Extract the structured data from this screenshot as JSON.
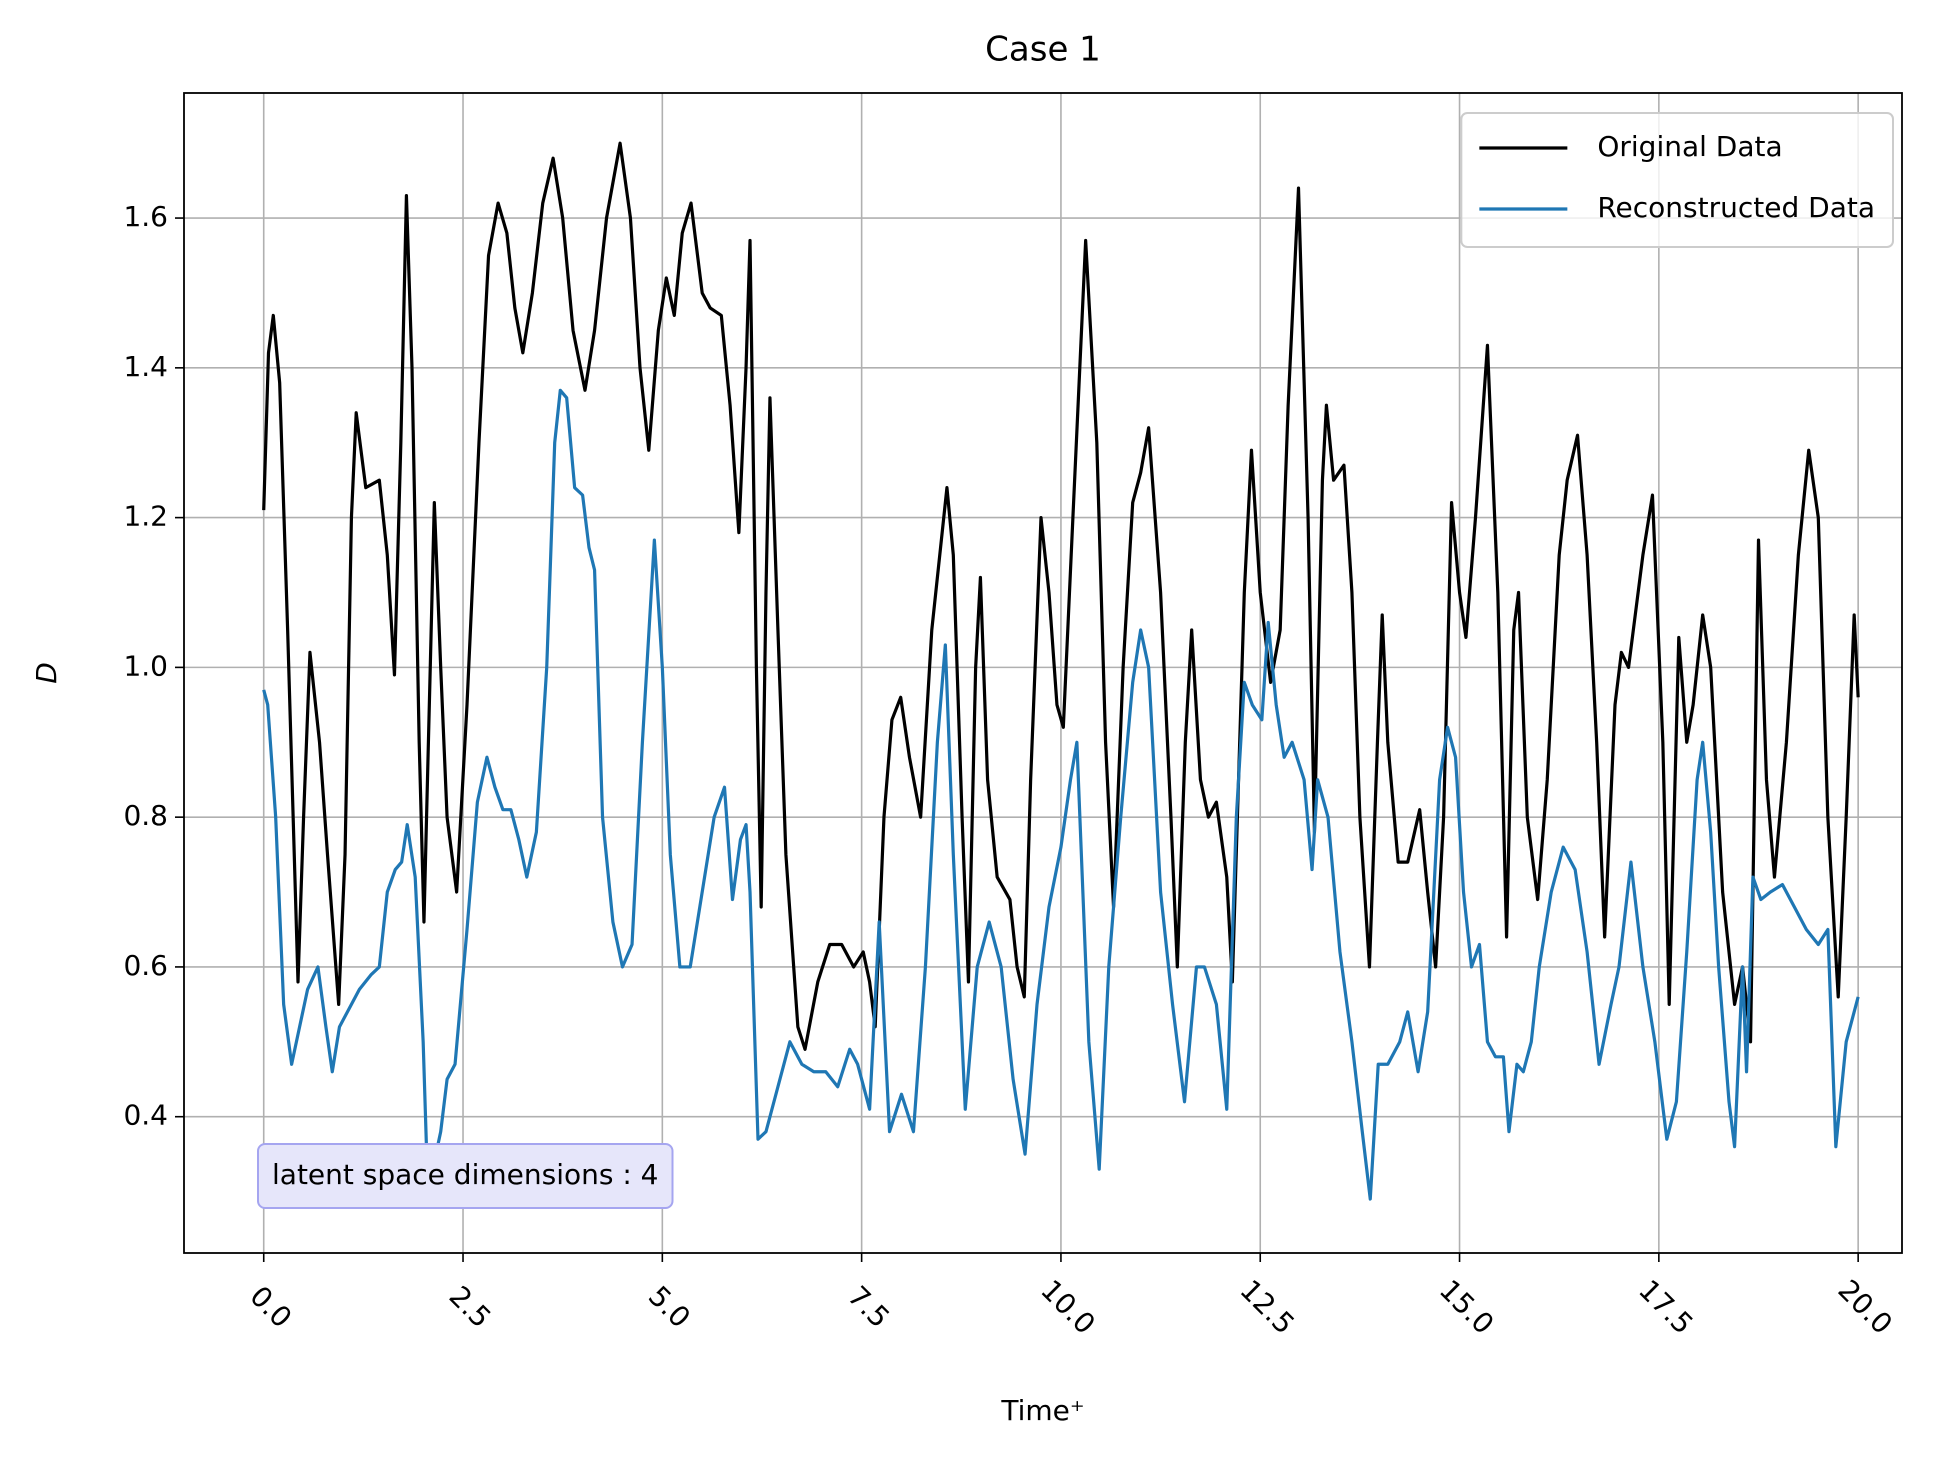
{
  "chart_data": {
    "type": "line",
    "title": "Case 1",
    "x_label": "Time⁺",
    "y_label": "D",
    "annotation": "latent space dimensions : 4",
    "xlim": [
      -1,
      20.55
    ],
    "ylim": [
      0.218,
      1.767
    ],
    "xticks": [
      {
        "value": 0,
        "label": "0.0"
      },
      {
        "value": 2.5,
        "label": "2.5"
      },
      {
        "value": 5,
        "label": "5.0"
      },
      {
        "value": 7.5,
        "label": "7.5"
      },
      {
        "value": 10,
        "label": "10.0"
      },
      {
        "value": 12.5,
        "label": "12.5"
      },
      {
        "value": 15,
        "label": "15.0"
      },
      {
        "value": 17.5,
        "label": "17.5"
      },
      {
        "value": 20,
        "label": "20.0"
      }
    ],
    "yticks": [
      0.4,
      0.6,
      0.8,
      {
        "value": 1,
        "label": "1.0"
      },
      1.2,
      1.4,
      1.6
    ],
    "grid": true,
    "legend": "upper right",
    "series": [
      {
        "name": "Original Data",
        "color": "#000000",
        "x": [
          0,
          0.06,
          0.12,
          0.2,
          0.3,
          0.43,
          0.5,
          0.58,
          0.7,
          0.8,
          0.94,
          1.02,
          1.1,
          1.16,
          1.28,
          1.45,
          1.55,
          1.64,
          1.72,
          1.79,
          1.86,
          1.95,
          2.01,
          2.14,
          2.22,
          2.3,
          2.42,
          2.55,
          2.7,
          2.82,
          2.94,
          3.05,
          3.15,
          3.25,
          3.37,
          3.5,
          3.63,
          3.75,
          3.88,
          4.03,
          4.15,
          4.3,
          4.47,
          4.6,
          4.72,
          4.83,
          4.95,
          5.05,
          5.15,
          5.25,
          5.36,
          5.5,
          5.6,
          5.74,
          5.85,
          5.96,
          6.05,
          6.1,
          6.18,
          6.24,
          6.3,
          6.35,
          6.45,
          6.55,
          6.7,
          6.79,
          6.95,
          7.1,
          7.25,
          7.4,
          7.52,
          7.6,
          7.67,
          7.78,
          7.88,
          7.99,
          8.1,
          8.24,
          8.38,
          8.57,
          8.65,
          8.76,
          8.84,
          8.93,
          8.99,
          9.08,
          9.2,
          9.36,
          9.45,
          9.54,
          9.62,
          9.75,
          9.85,
          9.95,
          10.03,
          10.15,
          10.31,
          10.45,
          10.56,
          10.66,
          10.78,
          10.9,
          11.0,
          11.1,
          11.25,
          11.38,
          11.46,
          11.56,
          11.64,
          11.75,
          11.85,
          11.95,
          12.08,
          12.15,
          12.3,
          12.39,
          12.5,
          12.63,
          12.75,
          12.85,
          12.98,
          13.1,
          13.18,
          13.28,
          13.33,
          13.42,
          13.55,
          13.65,
          13.75,
          13.87,
          13.97,
          14.03,
          14.1,
          14.23,
          14.35,
          14.5,
          14.6,
          14.7,
          14.8,
          14.9,
          15.0,
          15.08,
          15.2,
          15.35,
          15.48,
          15.59,
          15.68,
          15.74,
          15.85,
          15.98,
          16.1,
          16.25,
          16.35,
          16.48,
          16.6,
          16.72,
          16.82,
          16.95,
          17.03,
          17.12,
          17.3,
          17.42,
          17.55,
          17.63,
          17.75,
          17.85,
          17.93,
          18.05,
          18.15,
          18.3,
          18.45,
          18.55,
          18.65,
          18.75,
          18.85,
          18.95,
          19.1,
          19.25,
          19.38,
          19.5,
          19.62,
          19.75,
          19.85,
          19.95,
          20.0
        ],
        "values": [
          1.21,
          1.42,
          1.47,
          1.38,
          1.05,
          0.58,
          0.8,
          1.02,
          0.9,
          0.75,
          0.55,
          0.75,
          1.2,
          1.34,
          1.24,
          1.25,
          1.15,
          0.99,
          1.3,
          1.63,
          1.4,
          0.9,
          0.66,
          1.22,
          1.0,
          0.8,
          0.7,
          0.95,
          1.3,
          1.55,
          1.62,
          1.58,
          1.48,
          1.42,
          1.5,
          1.62,
          1.68,
          1.6,
          1.45,
          1.37,
          1.45,
          1.6,
          1.7,
          1.6,
          1.4,
          1.29,
          1.45,
          1.52,
          1.47,
          1.58,
          1.62,
          1.5,
          1.48,
          1.47,
          1.35,
          1.18,
          1.4,
          1.57,
          1.0,
          0.68,
          1.1,
          1.36,
          1.05,
          0.75,
          0.52,
          0.49,
          0.58,
          0.63,
          0.63,
          0.6,
          0.62,
          0.58,
          0.52,
          0.8,
          0.93,
          0.96,
          0.88,
          0.8,
          1.05,
          1.24,
          1.15,
          0.8,
          0.58,
          1.0,
          1.12,
          0.85,
          0.72,
          0.69,
          0.6,
          0.56,
          0.85,
          1.2,
          1.1,
          0.95,
          0.92,
          1.2,
          1.57,
          1.3,
          0.9,
          0.68,
          1.0,
          1.22,
          1.26,
          1.32,
          1.1,
          0.8,
          0.6,
          0.9,
          1.05,
          0.85,
          0.8,
          0.82,
          0.72,
          0.58,
          1.1,
          1.29,
          1.1,
          0.98,
          1.05,
          1.35,
          1.64,
          1.2,
          0.78,
          1.25,
          1.35,
          1.25,
          1.27,
          1.1,
          0.8,
          0.6,
          0.9,
          1.07,
          0.9,
          0.74,
          0.74,
          0.81,
          0.7,
          0.6,
          0.8,
          1.22,
          1.1,
          1.04,
          1.2,
          1.43,
          1.1,
          0.64,
          1.05,
          1.1,
          0.8,
          0.69,
          0.85,
          1.15,
          1.25,
          1.31,
          1.15,
          0.9,
          0.64,
          0.95,
          1.02,
          1.0,
          1.15,
          1.23,
          0.9,
          0.55,
          1.04,
          0.9,
          0.95,
          1.07,
          1.0,
          0.7,
          0.55,
          0.6,
          0.5,
          1.17,
          0.85,
          0.72,
          0.9,
          1.15,
          1.29,
          1.2,
          0.8,
          0.56,
          0.8,
          1.07,
          0.96
        ]
      },
      {
        "name": "Reconstructed Data",
        "color": "#1f77b4",
        "x": [
          0,
          0.05,
          0.15,
          0.25,
          0.35,
          0.45,
          0.55,
          0.68,
          0.78,
          0.86,
          0.95,
          1.05,
          1.2,
          1.35,
          1.45,
          1.55,
          1.65,
          1.73,
          1.8,
          1.9,
          2.0,
          2.05,
          2.12,
          2.22,
          2.3,
          2.4,
          2.55,
          2.68,
          2.8,
          2.9,
          3.0,
          3.1,
          3.2,
          3.3,
          3.42,
          3.55,
          3.65,
          3.72,
          3.8,
          3.9,
          4.0,
          4.08,
          4.15,
          4.25,
          4.38,
          4.5,
          4.62,
          4.75,
          4.9,
          5.0,
          5.1,
          5.22,
          5.35,
          5.5,
          5.65,
          5.78,
          5.88,
          5.98,
          6.05,
          6.1,
          6.2,
          6.3,
          6.45,
          6.6,
          6.75,
          6.9,
          7.05,
          7.2,
          7.35,
          7.45,
          7.6,
          7.72,
          7.85,
          8.0,
          8.15,
          8.3,
          8.45,
          8.55,
          8.65,
          8.8,
          8.95,
          9.1,
          9.25,
          9.4,
          9.55,
          9.7,
          9.85,
          10.0,
          10.12,
          10.2,
          10.35,
          10.48,
          10.6,
          10.75,
          10.9,
          11.0,
          11.1,
          11.25,
          11.4,
          11.55,
          11.7,
          11.8,
          11.95,
          12.08,
          12.2,
          12.3,
          12.4,
          12.52,
          12.6,
          12.7,
          12.8,
          12.9,
          13.05,
          13.15,
          13.22,
          13.35,
          13.5,
          13.65,
          13.78,
          13.88,
          13.98,
          14.1,
          14.25,
          14.35,
          14.48,
          14.6,
          14.75,
          14.85,
          14.95,
          15.05,
          15.15,
          15.25,
          15.35,
          15.45,
          15.55,
          15.62,
          15.72,
          15.8,
          15.9,
          16.0,
          16.15,
          16.3,
          16.45,
          16.6,
          16.75,
          16.9,
          17.0,
          17.15,
          17.3,
          17.45,
          17.6,
          17.72,
          17.85,
          17.98,
          18.05,
          18.15,
          18.25,
          18.38,
          18.45,
          18.55,
          18.6,
          18.68,
          18.78,
          18.9,
          19.05,
          19.2,
          19.35,
          19.5,
          19.62,
          19.72,
          19.85,
          20.0
        ],
        "values": [
          0.97,
          0.95,
          0.8,
          0.55,
          0.47,
          0.52,
          0.57,
          0.6,
          0.52,
          0.46,
          0.52,
          0.54,
          0.57,
          0.59,
          0.6,
          0.7,
          0.73,
          0.74,
          0.79,
          0.72,
          0.5,
          0.33,
          0.33,
          0.38,
          0.45,
          0.47,
          0.65,
          0.82,
          0.88,
          0.84,
          0.81,
          0.81,
          0.77,
          0.72,
          0.78,
          1.0,
          1.3,
          1.37,
          1.36,
          1.24,
          1.23,
          1.16,
          1.13,
          0.8,
          0.66,
          0.6,
          0.63,
          0.9,
          1.17,
          1.0,
          0.75,
          0.6,
          0.6,
          0.7,
          0.8,
          0.84,
          0.69,
          0.77,
          0.79,
          0.7,
          0.37,
          0.38,
          0.44,
          0.5,
          0.47,
          0.46,
          0.46,
          0.44,
          0.49,
          0.47,
          0.41,
          0.66,
          0.38,
          0.43,
          0.38,
          0.6,
          0.9,
          1.03,
          0.75,
          0.41,
          0.6,
          0.66,
          0.6,
          0.45,
          0.35,
          0.55,
          0.68,
          0.76,
          0.85,
          0.9,
          0.5,
          0.33,
          0.6,
          0.8,
          0.98,
          1.05,
          1.0,
          0.7,
          0.55,
          0.42,
          0.6,
          0.6,
          0.55,
          0.41,
          0.8,
          0.98,
          0.95,
          0.93,
          1.06,
          0.95,
          0.88,
          0.9,
          0.85,
          0.73,
          0.85,
          0.8,
          0.62,
          0.5,
          0.38,
          0.29,
          0.47,
          0.47,
          0.5,
          0.54,
          0.46,
          0.54,
          0.85,
          0.92,
          0.88,
          0.7,
          0.6,
          0.63,
          0.5,
          0.48,
          0.48,
          0.38,
          0.47,
          0.46,
          0.5,
          0.6,
          0.7,
          0.76,
          0.73,
          0.62,
          0.47,
          0.55,
          0.6,
          0.74,
          0.6,
          0.5,
          0.37,
          0.42,
          0.62,
          0.85,
          0.9,
          0.78,
          0.6,
          0.42,
          0.36,
          0.6,
          0.46,
          0.72,
          0.69,
          0.7,
          0.71,
          0.68,
          0.65,
          0.63,
          0.65,
          0.36,
          0.5,
          0.56
        ]
      }
    ]
  }
}
